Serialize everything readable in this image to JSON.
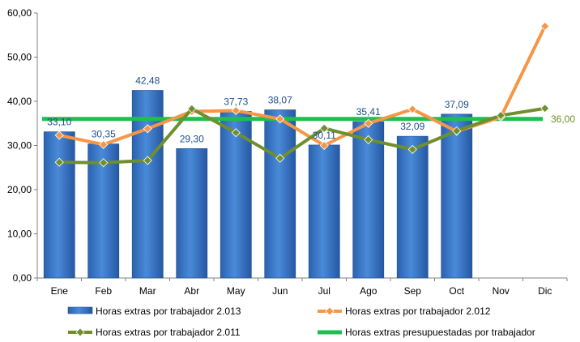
{
  "chart_data": {
    "type": "bar",
    "categories": [
      "Ene",
      "Feb",
      "Mar",
      "Abr",
      "May",
      "Jun",
      "Jul",
      "Ago",
      "Sep",
      "Oct",
      "Nov",
      "Dic"
    ],
    "ylim": [
      0,
      60
    ],
    "yticks": [
      "0,00",
      "10,00",
      "20,00",
      "30,00",
      "40,00",
      "50,00",
      "60,00"
    ],
    "grid": false,
    "legend_position": "bottom",
    "series": [
      {
        "name": "Horas extras por trabajador 2.013",
        "type": "bar",
        "color": "#3a78c8",
        "values": [
          33.1,
          30.35,
          42.48,
          29.3,
          37.73,
          38.07,
          30.11,
          35.41,
          32.09,
          37.09,
          null,
          null
        ],
        "labels": [
          "33,10",
          "30,35",
          "42,48",
          "29,30",
          "37,73",
          "38,07",
          "30,11",
          "35,41",
          "32,09",
          "37,09",
          "",
          ""
        ]
      },
      {
        "name": "Horas extras por trabajador 2.012",
        "type": "line",
        "color": "#f79646",
        "values": [
          32.3,
          30.2,
          33.8,
          37.7,
          37.9,
          36.0,
          30.0,
          35.0,
          38.2,
          33.2,
          36.4,
          57.0
        ]
      },
      {
        "name": "Horas extras por trabajador 2.011",
        "type": "line",
        "color": "#6f8f2f",
        "values": [
          26.2,
          26.1,
          26.6,
          38.3,
          32.9,
          27.1,
          33.9,
          31.3,
          29.1,
          33.3,
          36.8,
          38.4
        ]
      },
      {
        "name": "Horas extras presupuestadas por trabajador",
        "type": "line",
        "color": "#1fbf4f",
        "values": [
          36,
          36,
          36,
          36,
          36,
          36,
          36,
          36,
          36,
          36,
          36,
          36
        ],
        "end_label": "36,00"
      }
    ]
  }
}
